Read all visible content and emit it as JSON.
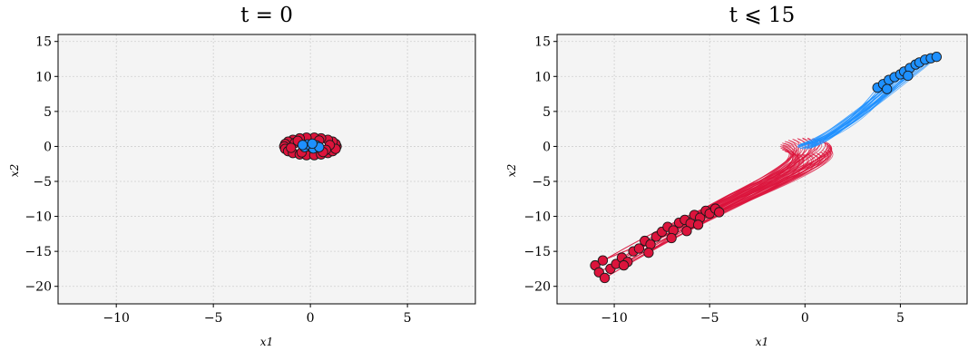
{
  "chart_data": [
    {
      "type": "scatter",
      "title": "t = 0",
      "xlabel": "x1",
      "ylabel": "x2",
      "xlim": [
        -13,
        8.5
      ],
      "ylim": [
        -22.5,
        16
      ],
      "xticks": [
        -10,
        -5,
        0,
        5
      ],
      "yticks": [
        15,
        10,
        5,
        0,
        -5,
        -10,
        -15,
        -20
      ],
      "xtick_labels": [
        "−10",
        "−5",
        "0",
        "5"
      ],
      "ytick_labels": [
        "15",
        "10",
        "5",
        "0",
        "−5",
        "−10",
        "−15",
        "−20"
      ],
      "grid": true,
      "colors": {
        "red": "#dc143c",
        "blue": "#1e90ff",
        "bg": "#f4f4f4"
      },
      "series": [
        {
          "color": "#dc143c",
          "points": [
            [
              1.35,
              0.0
            ],
            [
              1.3,
              0.35
            ],
            [
              1.15,
              0.68
            ],
            [
              0.9,
              0.95
            ],
            [
              0.55,
              1.15
            ],
            [
              0.2,
              1.25
            ],
            [
              -0.2,
              1.25
            ],
            [
              -0.55,
              1.15
            ],
            [
              -0.9,
              0.95
            ],
            [
              -1.15,
              0.68
            ],
            [
              -1.3,
              0.35
            ],
            [
              -1.35,
              0.0
            ],
            [
              -1.3,
              -0.35
            ],
            [
              -1.15,
              -0.68
            ],
            [
              -0.9,
              -0.95
            ],
            [
              -0.55,
              -1.15
            ],
            [
              -0.2,
              -1.25
            ],
            [
              0.2,
              -1.25
            ],
            [
              0.55,
              -1.15
            ],
            [
              0.9,
              -0.95
            ],
            [
              1.15,
              -0.68
            ],
            [
              1.3,
              -0.35
            ],
            [
              1.0,
              0.2
            ],
            [
              0.8,
              -0.5
            ],
            [
              -0.8,
              0.5
            ],
            [
              -1.0,
              -0.2
            ],
            [
              0.45,
              0.85
            ],
            [
              -0.45,
              -0.85
            ],
            [
              0.65,
              -0.8
            ],
            [
              -0.65,
              0.8
            ]
          ]
        },
        {
          "color": "#1e90ff",
          "points": [
            [
              0.0,
              0.0
            ],
            [
              0.3,
              0.15
            ],
            [
              -0.3,
              -0.1
            ],
            [
              0.15,
              -0.3
            ],
            [
              -0.15,
              0.3
            ],
            [
              0.45,
              -0.1
            ],
            [
              -0.4,
              0.2
            ],
            [
              0.1,
              0.4
            ]
          ]
        }
      ]
    },
    {
      "type": "line",
      "title": "t ⩽ 15",
      "xlabel": "x1",
      "ylabel": "x2",
      "xlim": [
        -13,
        8.5
      ],
      "ylim": [
        -22.5,
        16
      ],
      "xticks": [
        -10,
        -5,
        0,
        5
      ],
      "yticks": [
        15,
        10,
        5,
        0,
        -5,
        -10,
        -15,
        -20
      ],
      "xtick_labels": [
        "−10",
        "−5",
        "0",
        "5"
      ],
      "ytick_labels": [
        "15",
        "10",
        "5",
        "0",
        "−5",
        "−10",
        "−15",
        "−20"
      ],
      "grid": true,
      "series": [
        {
          "color": "#dc143c",
          "end_points": [
            [
              -11.0,
              -17.0
            ],
            [
              -10.8,
              -18.0
            ],
            [
              -10.5,
              -18.8
            ],
            [
              -10.2,
              -17.5
            ],
            [
              -9.9,
              -16.8
            ],
            [
              -9.6,
              -15.9
            ],
            [
              -9.3,
              -16.5
            ],
            [
              -9.0,
              -15.0
            ],
            [
              -8.7,
              -14.6
            ],
            [
              -8.4,
              -13.5
            ],
            [
              -8.1,
              -14.0
            ],
            [
              -7.8,
              -12.9
            ],
            [
              -7.5,
              -12.2
            ],
            [
              -7.2,
              -11.5
            ],
            [
              -6.9,
              -12.0
            ],
            [
              -6.6,
              -10.9
            ],
            [
              -6.3,
              -10.5
            ],
            [
              -6.0,
              -11.0
            ],
            [
              -5.8,
              -9.8
            ],
            [
              -5.5,
              -10.2
            ],
            [
              -5.2,
              -9.2
            ],
            [
              -5.0,
              -9.6
            ],
            [
              -4.7,
              -8.9
            ],
            [
              -10.6,
              -16.3
            ],
            [
              -9.5,
              -17.0
            ],
            [
              -8.2,
              -15.2
            ],
            [
              -7.0,
              -13.1
            ],
            [
              -6.2,
              -12.1
            ],
            [
              -5.6,
              -11.2
            ],
            [
              -4.5,
              -9.4
            ]
          ]
        },
        {
          "color": "#1e90ff",
          "end_points": [
            [
              3.8,
              8.4
            ],
            [
              4.1,
              8.9
            ],
            [
              4.4,
              9.5
            ],
            [
              4.7,
              9.9
            ],
            [
              5.0,
              10.3
            ],
            [
              5.2,
              10.7
            ],
            [
              5.5,
              11.2
            ],
            [
              5.8,
              11.7
            ],
            [
              6.0,
              12.0
            ],
            [
              6.3,
              12.4
            ],
            [
              6.6,
              12.6
            ],
            [
              6.9,
              12.8
            ],
            [
              4.3,
              8.2
            ],
            [
              5.4,
              10.1
            ]
          ]
        }
      ]
    }
  ]
}
